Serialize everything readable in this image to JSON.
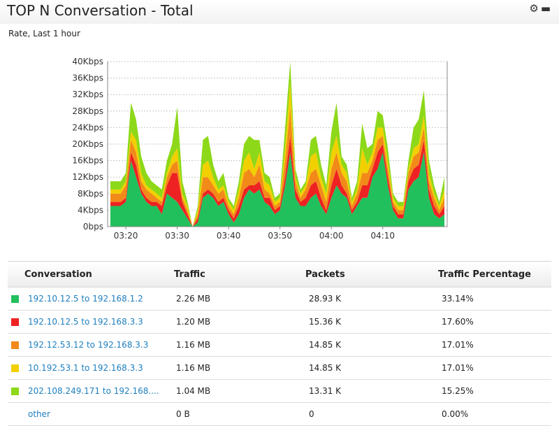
{
  "widget": {
    "title": "TOP N Conversation - Total",
    "subtitle": "Rate, Last 1 hour",
    "settings_icon": "gear-icon",
    "minimize_icon": "minimize-icon"
  },
  "chart_data": {
    "type": "area",
    "stacked": true,
    "x_ticks": [
      "03:20",
      "03:30",
      "03:40",
      "03:50",
      "04:00",
      "04:10"
    ],
    "y_ticks": [
      "0bps",
      "4Kbps",
      "8Kbps",
      "12Kbps",
      "16Kbps",
      "20Kbps",
      "24Kbps",
      "28Kbps",
      "32Kbps",
      "36Kbps",
      "40Kbps"
    ],
    "ylim": [
      0,
      40
    ],
    "grid": true,
    "series": [
      {
        "name": "192.10.12.5 to 192.168.1.2",
        "color": "#22c05c",
        "values": [
          5,
          5,
          5,
          6,
          16,
          12,
          8,
          6,
          5,
          5,
          3,
          8,
          7,
          6,
          4,
          2,
          0,
          1,
          7,
          8,
          7,
          5,
          6,
          3,
          1,
          3,
          7,
          9,
          8,
          9,
          6,
          5,
          3,
          4,
          10,
          18,
          7,
          5,
          5,
          7,
          8,
          5,
          3,
          7,
          10,
          8,
          7,
          3,
          5,
          7,
          7,
          12,
          14,
          18,
          10,
          4,
          2,
          2,
          9,
          11,
          12,
          18,
          7,
          3,
          2,
          3
        ]
      },
      {
        "name": "192.10.12.5 to 192.168.3.3",
        "color": "#ee2222",
        "values": [
          1,
          1,
          1,
          1,
          2,
          3,
          1,
          1,
          1,
          1,
          2,
          2,
          6,
          7,
          2,
          1,
          0,
          1,
          1,
          1,
          1,
          1,
          1,
          1,
          1,
          2,
          2,
          1,
          2,
          2,
          1,
          2,
          1,
          1,
          2,
          4,
          2,
          1,
          2,
          3,
          3,
          2,
          1,
          3,
          4,
          2,
          1,
          1,
          1,
          3,
          3,
          2,
          4,
          2,
          2,
          1,
          1,
          1,
          2,
          3,
          3,
          3,
          2,
          2,
          1,
          2
        ]
      },
      {
        "name": "192.12.53.12 to 192.168.3.3",
        "color": "#f28a1a",
        "values": [
          2,
          2,
          2,
          3,
          3,
          3,
          2,
          2,
          2,
          1,
          1,
          2,
          2,
          3,
          1,
          1,
          0,
          1,
          4,
          3,
          2,
          2,
          2,
          1,
          1,
          2,
          4,
          4,
          2,
          4,
          2,
          1,
          1,
          1,
          4,
          7,
          2,
          1,
          2,
          3,
          3,
          3,
          2,
          4,
          4,
          3,
          3,
          1,
          2,
          3,
          3,
          2,
          3,
          2,
          2,
          1,
          1,
          1,
          2,
          3,
          3,
          3,
          2,
          2,
          1,
          2
        ]
      },
      {
        "name": "10.192.53.1 to 192.168.3.3",
        "color": "#f2d000",
        "values": [
          1,
          1,
          1,
          1,
          2,
          3,
          2,
          1,
          1,
          1,
          1,
          1,
          2,
          3,
          1,
          1,
          0,
          1,
          3,
          4,
          2,
          1,
          1,
          1,
          1,
          2,
          3,
          4,
          2,
          3,
          2,
          2,
          1,
          1,
          3,
          6,
          1,
          1,
          1,
          4,
          4,
          2,
          2,
          4,
          4,
          2,
          2,
          1,
          1,
          6,
          2,
          2,
          3,
          2,
          2,
          1,
          1,
          1,
          1,
          2,
          2,
          3,
          2,
          1,
          1,
          2
        ]
      },
      {
        "name": "202.108.249.171 to 192.168....",
        "color": "#8dd818",
        "values": [
          2,
          2,
          2,
          2,
          7,
          5,
          4,
          3,
          2,
          2,
          2,
          3,
          3,
          10,
          3,
          1,
          0,
          1,
          6,
          6,
          3,
          2,
          3,
          1,
          1,
          2,
          4,
          4,
          7,
          3,
          2,
          2,
          1,
          1,
          5,
          5,
          2,
          1,
          1,
          4,
          4,
          3,
          2,
          5,
          8,
          2,
          2,
          1,
          2,
          6,
          4,
          2,
          4,
          3,
          3,
          1,
          1,
          1,
          2,
          5,
          6,
          6,
          3,
          2,
          1,
          3
        ]
      }
    ]
  },
  "table": {
    "headers": {
      "conversation": "Conversation",
      "traffic": "Traffic",
      "packets": "Packets",
      "percentage": "Traffic Percentage"
    },
    "rows": [
      {
        "color": "#22c05c",
        "conversation": "192.10.12.5 to 192.168.1.2",
        "traffic": "2.26 MB",
        "packets": "28.93 K",
        "percentage": "33.14%"
      },
      {
        "color": "#ee2222",
        "conversation": "192.10.12.5 to 192.168.3.3",
        "traffic": "1.20 MB",
        "packets": "15.36 K",
        "percentage": "17.60%"
      },
      {
        "color": "#f28a1a",
        "conversation": "192.12.53.12 to 192.168.3.3",
        "traffic": "1.16 MB",
        "packets": "14.85 K",
        "percentage": "17.01%"
      },
      {
        "color": "#f2d000",
        "conversation": "10.192.53.1 to 192.168.3.3",
        "traffic": "1.16 MB",
        "packets": "14.85 K",
        "percentage": "17.01%"
      },
      {
        "color": "#8dd818",
        "conversation": "202.108.249.171 to 192.168....",
        "traffic": "1.04 MB",
        "packets": "13.31 K",
        "percentage": "15.25%"
      },
      {
        "color": "",
        "conversation": "other",
        "traffic": "0 B",
        "packets": "0",
        "percentage": "0.00%"
      }
    ]
  }
}
